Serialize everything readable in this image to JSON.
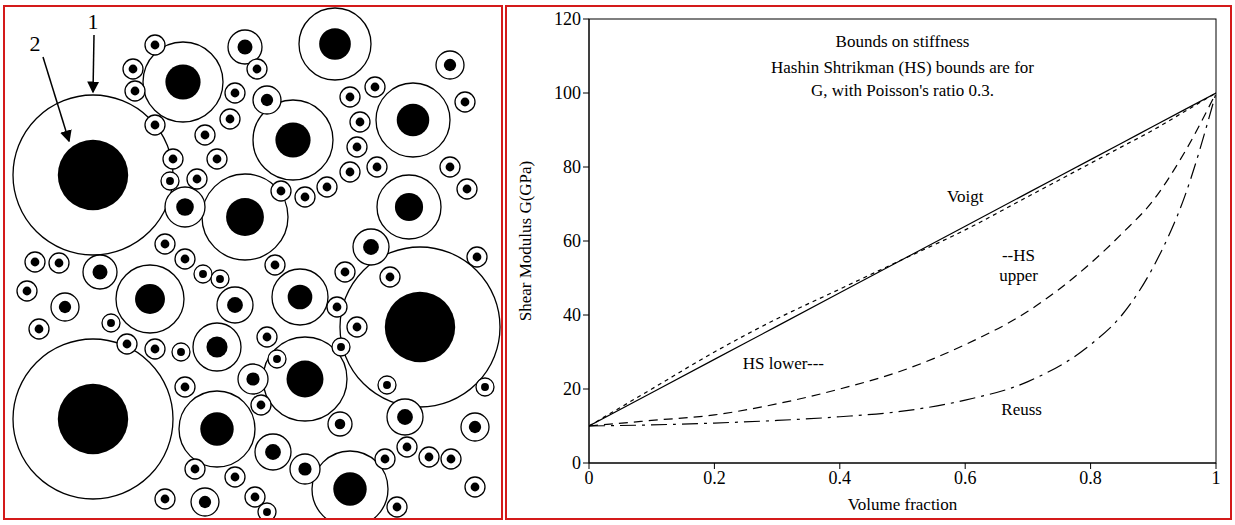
{
  "diagram": {
    "labels": [
      "1",
      "2"
    ]
  },
  "chart_data": {
    "type": "line",
    "title": "Bounds on stiffness",
    "subtitle": "Hashin Shtrikman (HS) bounds are for G, with Poisson's ratio 0.3.",
    "x_label": "Volume fraction",
    "y_label": "Shear Modulus G(GPa)",
    "x": [
      0,
      0.1,
      0.2,
      0.3,
      0.4,
      0.5,
      0.6,
      0.7,
      0.8,
      0.85,
      0.9,
      0.95,
      1
    ],
    "series": [
      {
        "name": "Voigt",
        "color": "#000000",
        "line_style": "solid",
        "values": [
          10,
          19,
          28,
          37,
          46,
          55,
          64,
          73,
          82,
          86.5,
          91,
          95.5,
          100
        ]
      },
      {
        "name": "--HS upper",
        "color": "#000000",
        "line_style": "dotted",
        "values": [
          10,
          20,
          30,
          39,
          47,
          55,
          63,
          72,
          81,
          85.5,
          90,
          95,
          100
        ]
      },
      {
        "name": "HS lower---",
        "color": "#000000",
        "line_style": "dashed",
        "values": [
          10,
          11.5,
          13,
          16,
          20,
          25,
          32,
          41,
          54,
          62,
          71,
          84,
          100
        ]
      },
      {
        "name": "Reuss",
        "color": "#000000",
        "line_style": "dashdot",
        "values": [
          10,
          10.3,
          10.8,
          11.5,
          12.5,
          14,
          17,
          22,
          32,
          40,
          53,
          72,
          100
        ]
      }
    ],
    "xlim": [
      0,
      1
    ],
    "xticks": [
      0,
      0.2,
      0.4,
      0.6,
      0.8,
      1
    ],
    "ylim": [
      0,
      120
    ],
    "yticks": [
      0,
      20,
      40,
      60,
      80,
      100,
      120
    ],
    "grid": false
  }
}
